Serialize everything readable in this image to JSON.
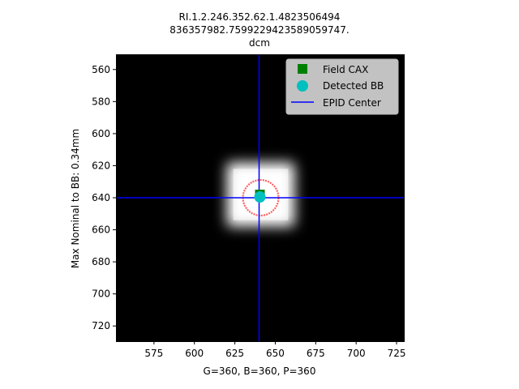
{
  "chart_data": {
    "type": "image",
    "title_lines": [
      "RI.1.2.246.352.62.1.4823506494",
      "836357982.7599229423589059747.",
      "dcm"
    ],
    "xlabel": "G=360, B=360, P=360",
    "ylabel": "Max Nominal to BB: 0.34mm",
    "xlim": [
      551.5,
      729.5
    ],
    "ylim": [
      729.5,
      550.5
    ],
    "x_ticks": [
      575,
      600,
      625,
      650,
      675,
      700,
      725
    ],
    "y_ticks": [
      560,
      580,
      600,
      620,
      640,
      660,
      680,
      700,
      720
    ],
    "field": {
      "x_min": 620,
      "x_max": 662,
      "y_min": 618,
      "y_max": 658,
      "blur": 4
    },
    "detected_ring": {
      "cx": 641,
      "cy": 640,
      "r": 11,
      "color": "#ff4444"
    },
    "points": {
      "field_cax": {
        "x": 640.5,
        "y": 638,
        "color": "#008000",
        "marker": "square"
      },
      "detected_bb": {
        "x": 640.5,
        "y": 639.5,
        "color": "#00bfbf",
        "marker": "circle"
      }
    },
    "epid_center": {
      "x": 640,
      "y": 640,
      "color": "#0000ff"
    },
    "legend": {
      "position": "upper-right",
      "entries": [
        {
          "label": "Field CAX",
          "marker": "square",
          "color": "#008000"
        },
        {
          "label": "Detected BB",
          "marker": "circle",
          "color": "#00bfbf"
        },
        {
          "label": "EPID Center",
          "marker": "line",
          "color": "#0000ff"
        }
      ]
    }
  }
}
